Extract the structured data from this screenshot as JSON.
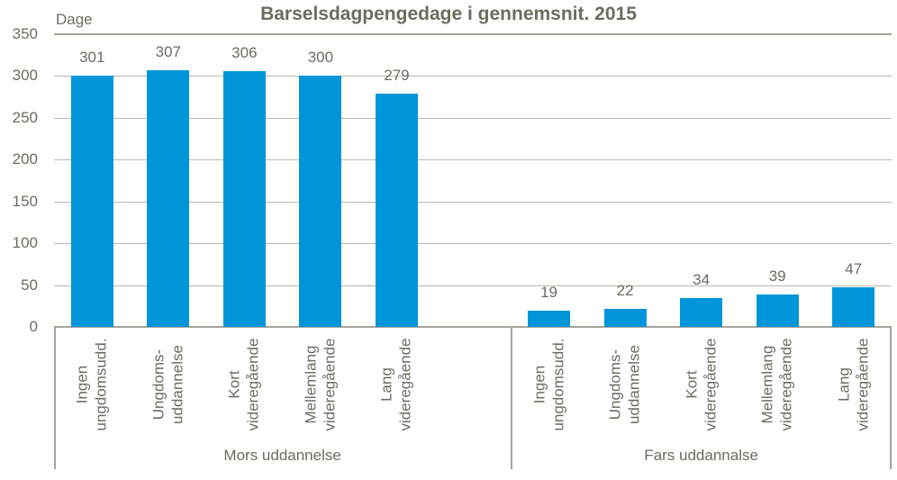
{
  "chart_data": {
    "type": "bar",
    "title": "Barselsdagpengedage i gennemsnit. 2015",
    "ylabel": "Dage",
    "xlabel": "",
    "ylim": [
      0,
      350
    ],
    "yticks": [
      0,
      50,
      100,
      150,
      200,
      250,
      300,
      350
    ],
    "grid": "horizontal",
    "legend": "none",
    "bar_color": "#0095D8",
    "text_color": "#6E6B5F",
    "gridline_color": "#BAB7AF",
    "axis_color": "#A6A399",
    "groups": [
      {
        "label": "Mors uddannelse",
        "categories": [
          "Ingen\nungdomsudd.",
          "Ungdoms-\nuddannelse",
          "Kort\nvideregående",
          "Mellemlang\nvideregående",
          "Lang\nvideregående"
        ],
        "values": [
          301,
          307,
          306,
          300,
          279
        ]
      },
      {
        "label": "Fars uddannalse",
        "categories": [
          "Ingen\nungdomsudd.",
          "Ungdoms-\nuddannelse",
          "Kort\nvideregående",
          "Mellemlang\nvideregående",
          "Lang\nvideregående"
        ],
        "values": [
          19,
          22,
          34,
          39,
          47
        ]
      }
    ]
  }
}
